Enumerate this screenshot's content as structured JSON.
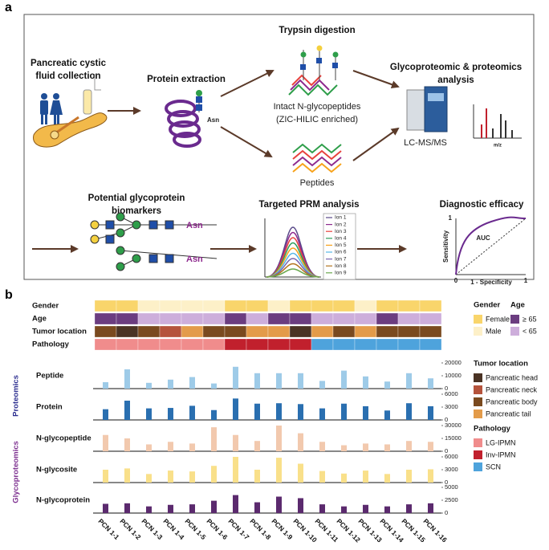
{
  "panel_a": {
    "label": "a",
    "collection": [
      "Pancreatic cystic",
      "fluid collection"
    ],
    "extraction": "Protein extraction",
    "asn_protein": "Asn",
    "digestion": "Trypsin digestion",
    "glycopeptides": [
      "Intact N-glycopeptides",
      "(ZIC-HILIC enriched)"
    ],
    "peptides": "Peptides",
    "analysis": [
      "Glycoproteomic & proteomics",
      "analysis"
    ],
    "instrument": "LC-MS/MS",
    "ms_axis": "m/z",
    "biomarkers": [
      "Potential glycoprotein",
      "biomarkers"
    ],
    "asn_glycans": [
      "Asn",
      "Asn"
    ],
    "prm": "Targeted PRM analysis",
    "ions": [
      {
        "name": "Ion 1",
        "color": "#5a4a8a"
      },
      {
        "name": "Ion 2",
        "color": "#8e2a8e"
      },
      {
        "name": "Ion 3",
        "color": "#e8413c"
      },
      {
        "name": "Ion 4",
        "color": "#2e9e5b"
      },
      {
        "name": "Ion 5",
        "color": "#f7a21b"
      },
      {
        "name": "Ion 6",
        "color": "#58b7e6"
      },
      {
        "name": "Ion 7",
        "color": "#7a66b0"
      },
      {
        "name": "Ion 8",
        "color": "#b3741f"
      },
      {
        "name": "Ion 9",
        "color": "#6aa84f"
      }
    ],
    "roc": {
      "title": "Diagnostic efficacy",
      "auc": "AUC",
      "x_label": "1 - Specificity",
      "y_label": "Sensitivity",
      "xticks": [
        0,
        1
      ],
      "yticks": [
        1
      ]
    }
  },
  "panel_b": {
    "label": "b",
    "samples": [
      "PCN 1-1",
      "PCN 1-2",
      "PCN 1-3",
      "PCN 1-4",
      "PCN 1-5",
      "PCN 1-6",
      "PCN 1-7",
      "PCN 1-8",
      "PCN 1-9",
      "PCN 1-10",
      "PCN 1-11",
      "PCN 1-12",
      "PCN 1-13",
      "PCN 1-14",
      "PCN 1-15",
      "PCN 1-16"
    ],
    "tracks": [
      {
        "name": "Gender",
        "values": [
          "Female",
          "Female",
          "Male",
          "Male",
          "Male",
          "Male",
          "Female",
          "Female",
          "Male",
          "Female",
          "Female",
          "Female",
          "Male",
          "Female",
          "Female",
          "Female"
        ]
      },
      {
        "name": "Age",
        "values": [
          "≥ 65",
          "≥ 65",
          "< 65",
          "< 65",
          "< 65",
          "< 65",
          "≥ 65",
          "< 65",
          "≥ 65",
          "≥ 65",
          "< 65",
          "< 65",
          "< 65",
          "≥ 65",
          "< 65",
          "< 65"
        ]
      },
      {
        "name": "Tumor location",
        "values": [
          "Pancreatic body",
          "Pancreatic head",
          "Pancreatic body",
          "Pancreatic neck",
          "Pancreatic tail",
          "Pancreatic body",
          "Pancreatic body",
          "Pancreatic tail",
          "Pancreatic tail",
          "Pancreatic head",
          "Pancreatic tail",
          "Pancreatic body",
          "Pancreatic tail",
          "Pancreatic body",
          "Pancreatic body",
          "Pancreatic body"
        ]
      },
      {
        "name": "Pathology",
        "values": [
          "LG-IPMN",
          "LG-IPMN",
          "LG-IPMN",
          "LG-IPMN",
          "LG-IPMN",
          "LG-IPMN",
          "Inv-IPMN",
          "Inv-IPMN",
          "Inv-IPMN",
          "Inv-IPMN",
          "SCN",
          "SCN",
          "SCN",
          "SCN",
          "SCN",
          "SCN"
        ]
      }
    ],
    "legends": [
      {
        "title": "Gender",
        "items": [
          {
            "label": "Female",
            "color": "#f9d56b"
          },
          {
            "label": "Male",
            "color": "#fdf0c8"
          }
        ]
      },
      {
        "title": "Age",
        "items": [
          {
            "label": "≥ 65",
            "color": "#6b3d80"
          },
          {
            "label": "< 65",
            "color": "#cdaedb"
          }
        ]
      },
      {
        "title": "Tumor location",
        "items": [
          {
            "label": "Pancreatic head",
            "color": "#4a3324"
          },
          {
            "label": "Pancreatic neck",
            "color": "#b5533c"
          },
          {
            "label": "Pancreatic body",
            "color": "#7a4a1f"
          },
          {
            "label": "Pancreatic tail",
            "color": "#e39b4a"
          }
        ]
      },
      {
        "title": "Pathology",
        "items": [
          {
            "label": "LG-IPMN",
            "color": "#f08c8c"
          },
          {
            "label": "Inv-IPMN",
            "color": "#c1202d"
          },
          {
            "label": "SCN",
            "color": "#4ea3dc"
          }
        ]
      }
    ],
    "groups": [
      {
        "name": "Proteomics",
        "color": "#2b2d8f"
      },
      {
        "name": "Glycoproteomics",
        "color": "#7b2d8e"
      }
    ]
  },
  "chart_data": [
    {
      "type": "bar",
      "title": "Peptide",
      "values": [
        5000,
        15000,
        4500,
        7000,
        9000,
        4000,
        17000,
        12000,
        12000,
        12000,
        6000,
        14000,
        9500,
        5500,
        12000,
        8000
      ],
      "color": "#9ecbe8",
      "ylim": [
        0,
        20000
      ],
      "yticks": [
        0,
        10000,
        20000
      ]
    },
    {
      "type": "bar",
      "title": "Protein",
      "values": [
        2500,
        4500,
        2700,
        2800,
        3300,
        2300,
        5000,
        3800,
        3900,
        3700,
        2700,
        3800,
        3200,
        2200,
        3900,
        3200
      ],
      "color": "#2a6fb0",
      "ylim": [
        0,
        6000
      ],
      "yticks": [
        0,
        3000,
        6000
      ]
    },
    {
      "type": "bar",
      "title": "N-glycopeptide",
      "values": [
        19000,
        15000,
        8000,
        11000,
        9000,
        28000,
        19000,
        12000,
        30000,
        21000,
        11000,
        7000,
        9000,
        8000,
        12000,
        11000
      ],
      "color": "#f2c9ae",
      "ylim": [
        0,
        30000
      ],
      "yticks": [
        0,
        15000,
        30000
      ]
    },
    {
      "type": "bar",
      "title": "N-glycosite",
      "values": [
        3000,
        3300,
        2000,
        2800,
        2600,
        3900,
        6000,
        3000,
        5800,
        4400,
        2700,
        2100,
        2800,
        2000,
        3000,
        3100
      ],
      "color": "#f9e08a",
      "ylim": [
        0,
        6000
      ],
      "yticks": [
        0,
        3000,
        6000
      ]
    },
    {
      "type": "bar",
      "title": "N-glycoprotein",
      "values": [
        1800,
        1900,
        1300,
        1600,
        1700,
        2400,
        3500,
        2100,
        3200,
        2900,
        1700,
        1300,
        1600,
        1300,
        1700,
        1900
      ],
      "color": "#5b2a6e",
      "ylim": [
        0,
        5000
      ],
      "yticks": [
        0,
        2500,
        5000
      ]
    }
  ]
}
